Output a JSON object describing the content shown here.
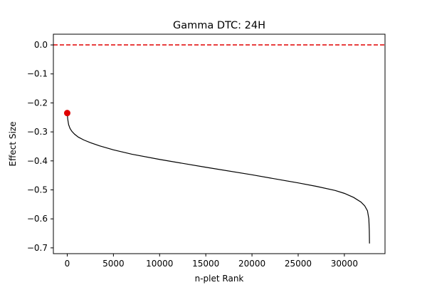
{
  "chart_data": {
    "type": "line",
    "title": "Gamma DTC: 24H",
    "xlabel": "n-plet Rank",
    "ylabel": "Effect Size",
    "xlim": [
      -1500,
      34400
    ],
    "ylim": [
      -0.72,
      0.037
    ],
    "x_ticks": [
      0,
      5000,
      10000,
      15000,
      20000,
      25000,
      30000
    ],
    "x_tick_labels": [
      "0",
      "5000",
      "10000",
      "15000",
      "20000",
      "25000",
      "30000"
    ],
    "y_ticks": [
      0.0,
      -0.1,
      -0.2,
      -0.3,
      -0.4,
      -0.5,
      -0.6,
      -0.7
    ],
    "y_tick_labels": [
      "0.0",
      "−0.1",
      "−0.2",
      "−0.3",
      "−0.4",
      "−0.5",
      "−0.6",
      "−0.7"
    ],
    "grid": false,
    "reference_line": {
      "y": 0.0,
      "color": "#e00000",
      "style": "dashed"
    },
    "highlight_point": {
      "x": 0,
      "y": -0.235,
      "color": "#e00000"
    },
    "series": [
      {
        "color": "#000000",
        "points": [
          [
            0,
            -0.235
          ],
          [
            50,
            -0.255
          ],
          [
            150,
            -0.275
          ],
          [
            300,
            -0.288
          ],
          [
            500,
            -0.298
          ],
          [
            800,
            -0.308
          ],
          [
            1200,
            -0.318
          ],
          [
            1800,
            -0.328
          ],
          [
            2500,
            -0.337
          ],
          [
            3500,
            -0.348
          ],
          [
            5000,
            -0.362
          ],
          [
            7000,
            -0.377
          ],
          [
            10000,
            -0.395
          ],
          [
            15000,
            -0.422
          ],
          [
            20000,
            -0.448
          ],
          [
            25000,
            -0.476
          ],
          [
            27000,
            -0.488
          ],
          [
            29000,
            -0.502
          ],
          [
            30000,
            -0.512
          ],
          [
            31000,
            -0.526
          ],
          [
            31800,
            -0.542
          ],
          [
            32200,
            -0.555
          ],
          [
            32500,
            -0.572
          ],
          [
            32650,
            -0.6
          ],
          [
            32700,
            -0.64
          ],
          [
            32720,
            -0.685
          ]
        ]
      }
    ]
  }
}
